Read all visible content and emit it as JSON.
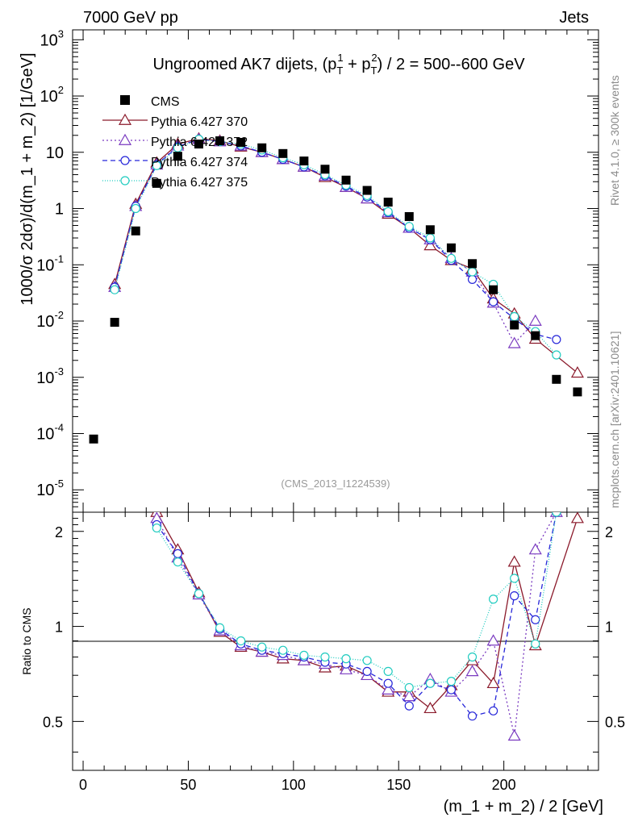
{
  "header": {
    "left": "7000 GeV pp",
    "right": "Jets"
  },
  "side_labels": {
    "rivet": "Rivet 4.1.0, ≥ 300k events",
    "mcplots": "mcplots.cern.ch [arXiv:2401.10621]"
  },
  "chart_data": {
    "type": "scatter",
    "title": "Ungroomed AK7 dijets, (p_T^1 + p_T^2) / 2 = 500--600 GeV",
    "title_main": "Ungroomed AK7 dijets, (p",
    "title_sub1": "T",
    "title_sup1": "1",
    "title_mid": " + p",
    "title_sub2": "T",
    "title_sup2": "2",
    "title_end": ") / 2 = 500--600 GeV",
    "analysis_id": "(CMS_2013_I1224539)",
    "xlabel": "(m_1 + m_2) / 2 [GeV]",
    "ylabel": "1000/σ  2dσ)/d(m_1 + m_2) [1/GeV]",
    "ratio_ylabel": "Ratio to CMS",
    "xlim": [
      -5,
      245
    ],
    "ylim_log": [
      4e-06,
      1500
    ],
    "ratio_ylim": [
      0.35,
      2.3
    ],
    "x_ticks": [
      "0",
      "50",
      "100",
      "150",
      "200"
    ],
    "y_ticks": [
      {
        "base": "10",
        "exp": "3"
      },
      {
        "base": "10",
        "exp": "2"
      },
      {
        "base": "10",
        "exp": ""
      },
      {
        "base": "1",
        "exp": ""
      },
      {
        "base": "10",
        "exp": "-1"
      },
      {
        "base": "10",
        "exp": "-2"
      },
      {
        "base": "10",
        "exp": "-3"
      },
      {
        "base": "10",
        "exp": "-4"
      },
      {
        "base": "10",
        "exp": "-5"
      }
    ],
    "ratio_ticks": [
      "2",
      "1",
      "0.5"
    ],
    "x": [
      5,
      15,
      25,
      35,
      45,
      55,
      65,
      75,
      85,
      95,
      105,
      115,
      125,
      135,
      145,
      155,
      165,
      175,
      185,
      195,
      205,
      215,
      225,
      235
    ],
    "data": {
      "name": "CMS",
      "values": [
        8e-05,
        0.0095,
        0.4,
        2.8,
        8.5,
        14,
        16,
        15,
        12,
        9.5,
        7,
        5,
        3.2,
        2.1,
        1.3,
        0.72,
        0.42,
        0.2,
        0.105,
        0.036,
        0.0085,
        0.0055,
        0.00092,
        0.00055
      ]
    },
    "series": [
      {
        "name": "Pythia 6.427 370",
        "color": "#8b1a2b",
        "dash": "",
        "marker": "triangle",
        "values": [
          null,
          0.045,
          1.2,
          6.5,
          14,
          17.5,
          16,
          12.5,
          10,
          7.5,
          5.5,
          3.6,
          2.4,
          1.5,
          0.8,
          0.45,
          0.22,
          0.12,
          0.085,
          0.025,
          0.0135,
          0.0048,
          null,
          0.0012
        ],
        "ratio": [
          null,
          null,
          null,
          2.3,
          1.75,
          1.28,
          0.96,
          0.86,
          0.83,
          0.79,
          0.78,
          0.74,
          0.75,
          0.7,
          0.62,
          0.62,
          0.55,
          0.65,
          0.78,
          0.66,
          1.6,
          0.87,
          null,
          2.2
        ]
      },
      {
        "name": "Pythia 6.427 372",
        "color": "#7a3ac0",
        "dash": "2,3",
        "marker": "triangle",
        "values": [
          null,
          0.04,
          1.1,
          6.0,
          13,
          17,
          15.5,
          13,
          10,
          7.5,
          5.5,
          3.8,
          2.4,
          1.5,
          0.85,
          0.45,
          0.28,
          0.13,
          0.075,
          0.021,
          0.004,
          0.01,
          null,
          null
        ],
        "ratio": [
          null,
          null,
          null,
          2.2,
          1.65,
          1.26,
          0.97,
          0.87,
          0.83,
          0.81,
          0.78,
          0.76,
          0.73,
          0.7,
          0.63,
          0.6,
          0.68,
          0.62,
          0.72,
          0.9,
          0.45,
          1.75,
          2.3,
          null
        ]
      },
      {
        "name": "Pythia 6.427 374",
        "color": "#2626d9",
        "dash": "6,4",
        "marker": "circle",
        "values": [
          null,
          0.04,
          1.1,
          6.0,
          12.5,
          17,
          15.5,
          13,
          10,
          7.5,
          5.5,
          3.8,
          2.5,
          1.6,
          0.85,
          0.45,
          0.28,
          0.12,
          0.055,
          0.022,
          0.011,
          0.0058,
          0.0047,
          null
        ],
        "ratio": [
          null,
          null,
          null,
          2.1,
          1.7,
          1.27,
          0.98,
          0.88,
          0.84,
          0.82,
          0.8,
          0.77,
          0.76,
          0.72,
          0.66,
          0.56,
          0.66,
          0.63,
          0.52,
          0.54,
          1.25,
          1.05,
          2.3,
          null
        ]
      },
      {
        "name": "Pythia 6.427 375",
        "color": "#22ccc0",
        "dash": "1,2",
        "marker": "circle",
        "values": [
          null,
          0.036,
          1.0,
          5.8,
          12,
          17,
          15.5,
          14,
          11,
          8,
          6,
          4,
          2.6,
          1.7,
          0.88,
          0.48,
          0.3,
          0.13,
          0.075,
          0.045,
          0.012,
          0.0065,
          0.0025,
          null
        ],
        "ratio": [
          null,
          null,
          null,
          2.05,
          1.6,
          1.27,
          0.99,
          0.9,
          0.86,
          0.84,
          0.81,
          0.8,
          0.79,
          0.78,
          0.72,
          0.64,
          0.66,
          0.67,
          0.8,
          1.22,
          1.42,
          0.88,
          2.3,
          null
        ]
      }
    ]
  }
}
